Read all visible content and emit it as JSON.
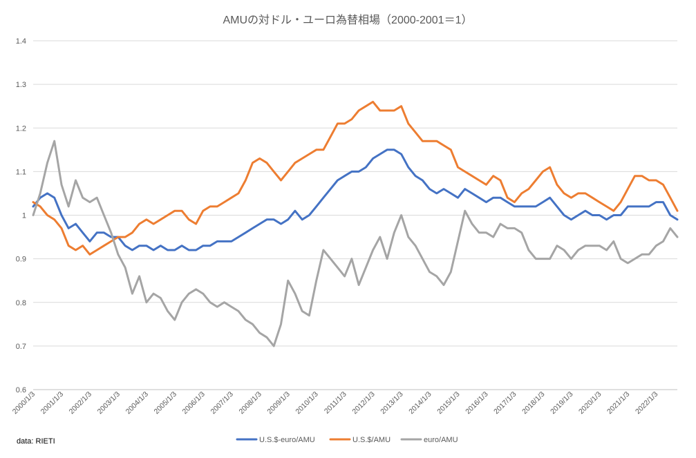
{
  "chart_data": {
    "type": "line",
    "title": "AMUの対ドル・ユーロ為替相場（2000-2001＝1）",
    "source_note": "data: RIETI",
    "ylim": [
      0.6,
      1.4
    ],
    "yticks": [
      "0.6",
      "0.7",
      "0.8",
      "0.9",
      "1",
      "1.1",
      "1.2",
      "1.3",
      "1.4"
    ],
    "ytick_values": [
      0.6,
      0.7,
      0.8,
      0.9,
      1.0,
      1.1,
      1.2,
      1.3,
      1.4
    ],
    "xticks": [
      "2000/1/3",
      "2001/1/3",
      "2002/1/3",
      "2003/1/3",
      "2004/1/3",
      "2005/1/3",
      "2006/1/3",
      "2007/1/3",
      "2008/1/3",
      "2009/1/3",
      "2010/1/3",
      "2011/1/3",
      "2012/1/3",
      "2013/1/3",
      "2014/1/3",
      "2015/1/3",
      "2016/1/3",
      "2017/1/3",
      "2018/1/3",
      "2019/1/3",
      "2020/1/3",
      "2021/1/3",
      "2022/1/3"
    ],
    "xlim": [
      2000.0,
      2022.75
    ],
    "grid": "horizontal",
    "legend_position": "bottom",
    "series": [
      {
        "name": "U.S.$-euro/AMU",
        "color": "#4472c4",
        "x": [
          2000.0,
          2000.25,
          2000.5,
          2000.75,
          2001.0,
          2001.25,
          2001.5,
          2001.75,
          2002.0,
          2002.25,
          2002.5,
          2002.75,
          2003.0,
          2003.25,
          2003.5,
          2003.75,
          2004.0,
          2004.25,
          2004.5,
          2004.75,
          2005.0,
          2005.25,
          2005.5,
          2005.75,
          2006.0,
          2006.25,
          2006.5,
          2006.75,
          2007.0,
          2007.25,
          2007.5,
          2007.75,
          2008.0,
          2008.25,
          2008.5,
          2008.75,
          2009.0,
          2009.25,
          2009.5,
          2009.75,
          2010.0,
          2010.25,
          2010.5,
          2010.75,
          2011.0,
          2011.25,
          2011.5,
          2011.75,
          2012.0,
          2012.25,
          2012.5,
          2012.75,
          2013.0,
          2013.25,
          2013.5,
          2013.75,
          2014.0,
          2014.25,
          2014.5,
          2014.75,
          2015.0,
          2015.25,
          2015.5,
          2015.75,
          2016.0,
          2016.25,
          2016.5,
          2016.75,
          2017.0,
          2017.25,
          2017.5,
          2017.75,
          2018.0,
          2018.25,
          2018.5,
          2018.75,
          2019.0,
          2019.25,
          2019.5,
          2019.75,
          2020.0,
          2020.25,
          2020.5,
          2020.75,
          2021.0,
          2021.25,
          2021.5,
          2021.75,
          2022.0,
          2022.25,
          2022.5,
          2022.75
        ],
        "values": [
          1.02,
          1.04,
          1.05,
          1.04,
          1.0,
          0.97,
          0.98,
          0.96,
          0.94,
          0.96,
          0.96,
          0.95,
          0.95,
          0.93,
          0.92,
          0.93,
          0.93,
          0.92,
          0.93,
          0.92,
          0.92,
          0.93,
          0.92,
          0.92,
          0.93,
          0.93,
          0.94,
          0.94,
          0.94,
          0.95,
          0.96,
          0.97,
          0.98,
          0.99,
          0.99,
          0.98,
          0.99,
          1.01,
          0.99,
          1.0,
          1.02,
          1.04,
          1.06,
          1.08,
          1.09,
          1.1,
          1.1,
          1.11,
          1.13,
          1.14,
          1.15,
          1.15,
          1.14,
          1.11,
          1.09,
          1.08,
          1.06,
          1.05,
          1.06,
          1.05,
          1.04,
          1.06,
          1.05,
          1.04,
          1.03,
          1.04,
          1.04,
          1.03,
          1.02,
          1.02,
          1.02,
          1.02,
          1.03,
          1.04,
          1.02,
          1.0,
          0.99,
          1.0,
          1.01,
          1.0,
          1.0,
          0.99,
          1.0,
          1.0,
          1.02,
          1.02,
          1.02,
          1.02,
          1.03,
          1.03,
          1.0,
          0.99
        ]
      },
      {
        "name": "U.S.$/AMU",
        "color": "#ed7d31",
        "x": [
          2000.0,
          2000.25,
          2000.5,
          2000.75,
          2001.0,
          2001.25,
          2001.5,
          2001.75,
          2002.0,
          2002.25,
          2002.5,
          2002.75,
          2003.0,
          2003.25,
          2003.5,
          2003.75,
          2004.0,
          2004.25,
          2004.5,
          2004.75,
          2005.0,
          2005.25,
          2005.5,
          2005.75,
          2006.0,
          2006.25,
          2006.5,
          2006.75,
          2007.0,
          2007.25,
          2007.5,
          2007.75,
          2008.0,
          2008.25,
          2008.5,
          2008.75,
          2009.0,
          2009.25,
          2009.5,
          2009.75,
          2010.0,
          2010.25,
          2010.5,
          2010.75,
          2011.0,
          2011.25,
          2011.5,
          2011.75,
          2012.0,
          2012.25,
          2012.5,
          2012.75,
          2013.0,
          2013.25,
          2013.5,
          2013.75,
          2014.0,
          2014.25,
          2014.5,
          2014.75,
          2015.0,
          2015.25,
          2015.5,
          2015.75,
          2016.0,
          2016.25,
          2016.5,
          2016.75,
          2017.0,
          2017.25,
          2017.5,
          2017.75,
          2018.0,
          2018.25,
          2018.5,
          2018.75,
          2019.0,
          2019.25,
          2019.5,
          2019.75,
          2020.0,
          2020.25,
          2020.5,
          2020.75,
          2021.0,
          2021.25,
          2021.5,
          2021.75,
          2022.0,
          2022.25,
          2022.5,
          2022.75
        ],
        "values": [
          1.03,
          1.02,
          1.0,
          0.99,
          0.97,
          0.93,
          0.92,
          0.93,
          0.91,
          0.92,
          0.93,
          0.94,
          0.95,
          0.95,
          0.96,
          0.98,
          0.99,
          0.98,
          0.99,
          1.0,
          1.01,
          1.01,
          0.99,
          0.98,
          1.01,
          1.02,
          1.02,
          1.03,
          1.04,
          1.05,
          1.08,
          1.12,
          1.13,
          1.12,
          1.1,
          1.08,
          1.1,
          1.12,
          1.13,
          1.14,
          1.15,
          1.15,
          1.18,
          1.21,
          1.21,
          1.22,
          1.24,
          1.25,
          1.26,
          1.24,
          1.24,
          1.24,
          1.25,
          1.21,
          1.19,
          1.17,
          1.17,
          1.17,
          1.16,
          1.15,
          1.11,
          1.1,
          1.09,
          1.08,
          1.07,
          1.09,
          1.08,
          1.04,
          1.03,
          1.05,
          1.06,
          1.08,
          1.1,
          1.11,
          1.07,
          1.05,
          1.04,
          1.05,
          1.05,
          1.04,
          1.03,
          1.02,
          1.01,
          1.03,
          1.06,
          1.09,
          1.09,
          1.08,
          1.08,
          1.07,
          1.04,
          1.01
        ]
      },
      {
        "name": "euro/AMU",
        "color": "#a5a5a5",
        "x": [
          2000.0,
          2000.25,
          2000.5,
          2000.75,
          2001.0,
          2001.25,
          2001.5,
          2001.75,
          2002.0,
          2002.25,
          2002.5,
          2002.75,
          2003.0,
          2003.25,
          2003.5,
          2003.75,
          2004.0,
          2004.25,
          2004.5,
          2004.75,
          2005.0,
          2005.25,
          2005.5,
          2005.75,
          2006.0,
          2006.25,
          2006.5,
          2006.75,
          2007.0,
          2007.25,
          2007.5,
          2007.75,
          2008.0,
          2008.25,
          2008.5,
          2008.75,
          2009.0,
          2009.25,
          2009.5,
          2009.75,
          2010.0,
          2010.25,
          2010.5,
          2010.75,
          2011.0,
          2011.25,
          2011.5,
          2011.75,
          2012.0,
          2012.25,
          2012.5,
          2012.75,
          2013.0,
          2013.25,
          2013.5,
          2013.75,
          2014.0,
          2014.25,
          2014.5,
          2014.75,
          2015.0,
          2015.25,
          2015.5,
          2015.75,
          2016.0,
          2016.25,
          2016.5,
          2016.75,
          2017.0,
          2017.25,
          2017.5,
          2017.75,
          2018.0,
          2018.25,
          2018.5,
          2018.75,
          2019.0,
          2019.25,
          2019.5,
          2019.75,
          2020.0,
          2020.25,
          2020.5,
          2020.75,
          2021.0,
          2021.25,
          2021.5,
          2021.75,
          2022.0,
          2022.25,
          2022.5,
          2022.75
        ],
        "values": [
          1.0,
          1.05,
          1.12,
          1.17,
          1.07,
          1.02,
          1.08,
          1.04,
          1.03,
          1.04,
          1.0,
          0.96,
          0.91,
          0.88,
          0.82,
          0.86,
          0.8,
          0.82,
          0.81,
          0.78,
          0.76,
          0.8,
          0.82,
          0.83,
          0.82,
          0.8,
          0.79,
          0.8,
          0.79,
          0.78,
          0.76,
          0.75,
          0.73,
          0.72,
          0.7,
          0.75,
          0.85,
          0.82,
          0.78,
          0.77,
          0.85,
          0.92,
          0.9,
          0.88,
          0.86,
          0.9,
          0.84,
          0.88,
          0.92,
          0.95,
          0.9,
          0.96,
          1.0,
          0.95,
          0.93,
          0.9,
          0.87,
          0.86,
          0.84,
          0.87,
          0.94,
          1.01,
          0.98,
          0.96,
          0.96,
          0.95,
          0.98,
          0.97,
          0.97,
          0.96,
          0.92,
          0.9,
          0.9,
          0.9,
          0.93,
          0.92,
          0.9,
          0.92,
          0.93,
          0.93,
          0.93,
          0.92,
          0.94,
          0.9,
          0.89,
          0.9,
          0.91,
          0.91,
          0.93,
          0.94,
          0.97,
          0.95
        ]
      }
    ]
  }
}
